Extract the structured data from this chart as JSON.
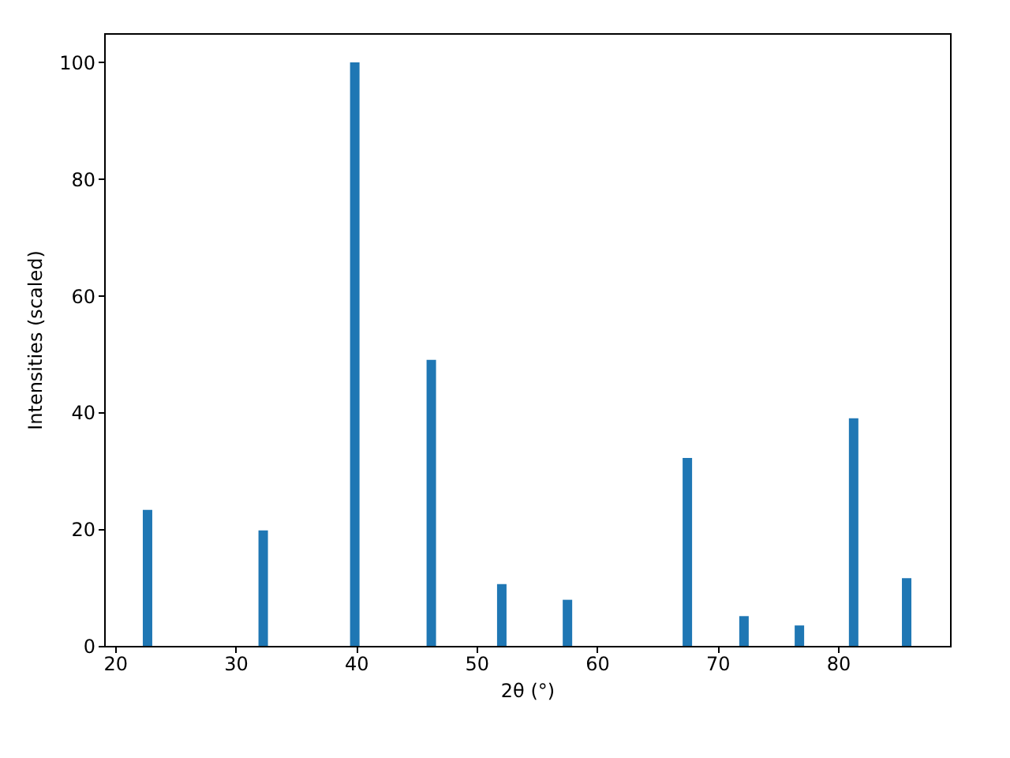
{
  "chart_data": {
    "type": "bar",
    "xlabel": "2θ (°)",
    "ylabel": "Intensities (scaled)",
    "x": [
      22.7,
      32.3,
      39.9,
      46.25,
      52.1,
      57.55,
      67.5,
      72.2,
      76.8,
      81.3,
      85.7
    ],
    "values": [
      23.3,
      19.8,
      100,
      49.0,
      10.6,
      7.9,
      32.2,
      5.1,
      3.5,
      39.0,
      11.6
    ],
    "color": "#1f77b4",
    "xlim": [
      19.1,
      89.3
    ],
    "xticks": [
      20,
      30,
      40,
      50,
      60,
      70,
      80
    ],
    "ylim": [
      0,
      105
    ],
    "yticks": [
      0,
      20,
      40,
      60,
      80,
      100
    ],
    "grid": false
  }
}
